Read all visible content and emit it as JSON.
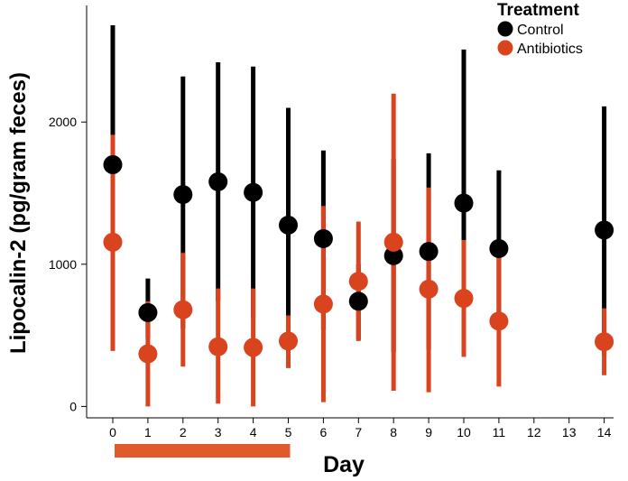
{
  "chart_data": {
    "type": "scatter",
    "title": "",
    "xlabel": "Day",
    "ylabel": "Lipocalin-2 (pg/gram feces)",
    "x_categories": [
      "0",
      "1",
      "2",
      "3",
      "4",
      "5",
      "6",
      "7",
      "8",
      "9",
      "10",
      "11",
      "12",
      "13",
      "14"
    ],
    "ylim": [
      -80,
      2820
    ],
    "y_ticks": [
      0,
      1000,
      2000
    ],
    "y_tick_labels": [
      "0",
      "1000",
      "2000"
    ],
    "grid": false,
    "legend": {
      "title": "Treatment",
      "position": "top-right"
    },
    "series": [
      {
        "name": "Control",
        "color": "#000000",
        "points": [
          {
            "day": "0",
            "mean": 1700,
            "low": 710,
            "high": 2680
          },
          {
            "day": "1",
            "mean": 660,
            "low": 480,
            "high": 900
          },
          {
            "day": "2",
            "mean": 1490,
            "low": 550,
            "high": 2320
          },
          {
            "day": "3",
            "mean": 1580,
            "low": 740,
            "high": 2420
          },
          {
            "day": "4",
            "mean": 1505,
            "low": 620,
            "high": 2390
          },
          {
            "day": "5",
            "mean": 1275,
            "low": 450,
            "high": 2100
          },
          {
            "day": "6",
            "mean": 1180,
            "low": 540,
            "high": 1800
          },
          {
            "day": "7",
            "mean": 740,
            "low": 470,
            "high": 1000
          },
          {
            "day": "8",
            "mean": 1060,
            "low": 380,
            "high": 1740
          },
          {
            "day": "9",
            "mean": 1090,
            "low": 400,
            "high": 1780
          },
          {
            "day": "10",
            "mean": 1430,
            "low": 350,
            "high": 2510
          },
          {
            "day": "11",
            "mean": 1110,
            "low": 550,
            "high": 1660
          },
          {
            "day": "14",
            "mean": 1240,
            "low": 360,
            "high": 2110
          }
        ]
      },
      {
        "name": "Antibiotics",
        "color": "#d9431e",
        "points": [
          {
            "day": "0",
            "mean": 1155,
            "low": 390,
            "high": 1910
          },
          {
            "day": "1",
            "mean": 370,
            "low": 0,
            "high": 740
          },
          {
            "day": "2",
            "mean": 680,
            "low": 280,
            "high": 1080
          },
          {
            "day": "3",
            "mean": 420,
            "low": 20,
            "high": 830
          },
          {
            "day": "4",
            "mean": 415,
            "low": 0,
            "high": 830
          },
          {
            "day": "5",
            "mean": 460,
            "low": 270,
            "high": 640
          },
          {
            "day": "6",
            "mean": 720,
            "low": 30,
            "high": 1410
          },
          {
            "day": "7",
            "mean": 880,
            "low": 460,
            "high": 1300
          },
          {
            "day": "8",
            "mean": 1155,
            "low": 110,
            "high": 2200
          },
          {
            "day": "9",
            "mean": 825,
            "low": 100,
            "high": 1540
          },
          {
            "day": "10",
            "mean": 760,
            "low": 350,
            "high": 1170
          },
          {
            "day": "11",
            "mean": 600,
            "low": 140,
            "high": 1060
          },
          {
            "day": "14",
            "mean": 455,
            "low": 220,
            "high": 690
          }
        ]
      }
    ],
    "treatment_bar": {
      "from_day": "0",
      "to_day": "5",
      "color": "#e05a2b"
    }
  }
}
